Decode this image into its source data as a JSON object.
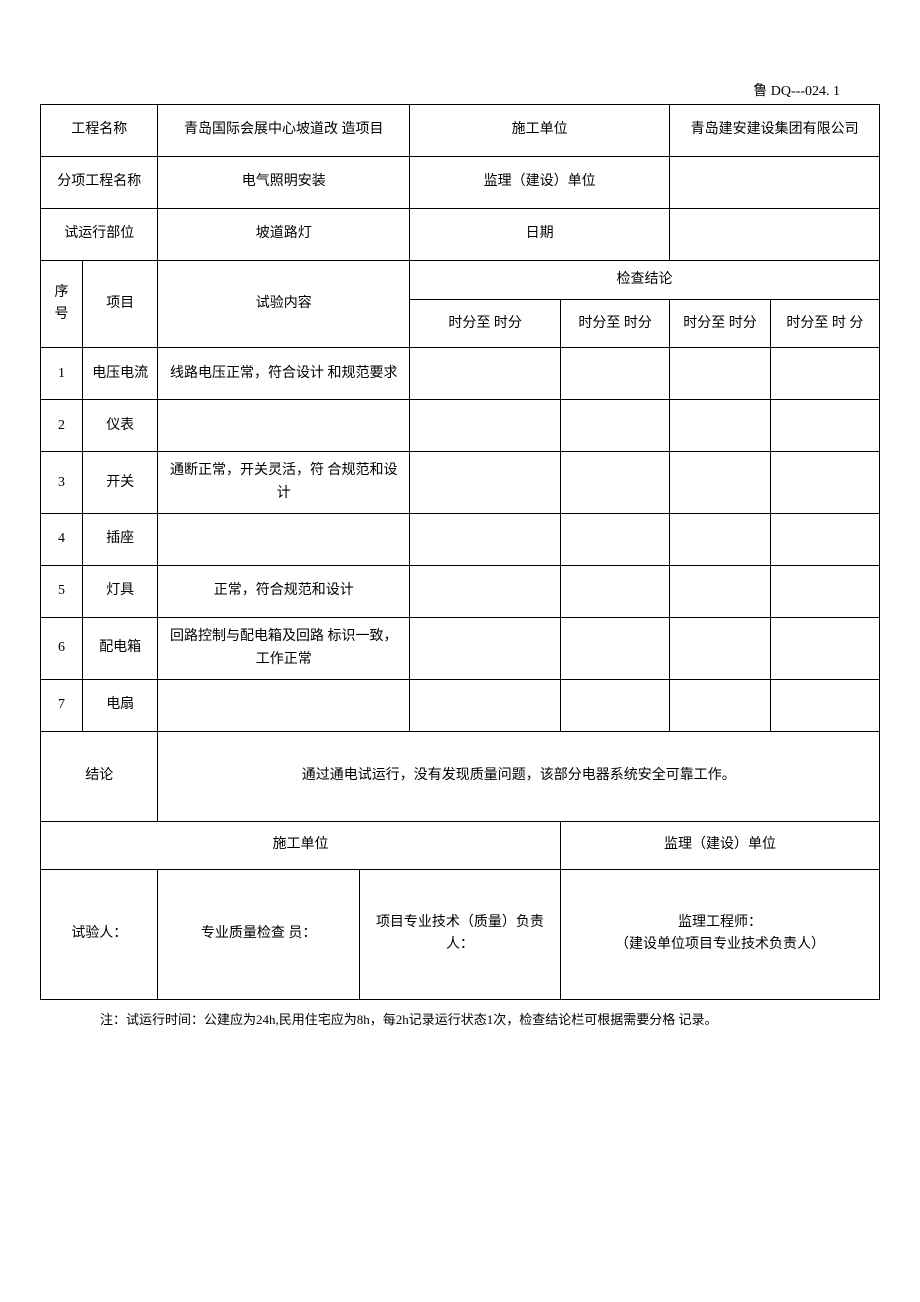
{
  "doc_code": "鲁 DQ---024. 1",
  "header": {
    "project_name_label": "工程名称",
    "project_name_value": "青岛国际会展中心坡道改 造项目",
    "construction_unit_label": "施工单位",
    "construction_unit_value": "青岛建安建设集团有限公司",
    "sub_project_label": "分项工程名称",
    "sub_project_value": "电气照明安装",
    "supervision_unit_label": "监理（建设）单位",
    "supervision_unit_value": "",
    "trial_part_label": "试运行部位",
    "trial_part_value": "坡道路灯",
    "date_label": "日期",
    "date_value": ""
  },
  "columns": {
    "seq_label": "序 号",
    "item_label": "项目",
    "content_label": "试验内容",
    "result_label": "检查结论",
    "time_col1": "时分至 时分",
    "time_col2": "时分至 时分",
    "time_col3": "时分至 时分",
    "time_col4": "时分至 时 分"
  },
  "rows": [
    {
      "seq": "1",
      "item": "电压电流",
      "content": "线路电压正常，符合设计 和规范要求",
      "c1": "",
      "c2": "",
      "c3": "",
      "c4": ""
    },
    {
      "seq": "2",
      "item": "仪表",
      "content": "",
      "c1": "",
      "c2": "",
      "c3": "",
      "c4": ""
    },
    {
      "seq": "3",
      "item": "开关",
      "content": "通断正常，开关灵活，符 合规范和设计",
      "c1": "",
      "c2": "",
      "c3": "",
      "c4": ""
    },
    {
      "seq": "4",
      "item": "插座",
      "content": "",
      "c1": "",
      "c2": "",
      "c3": "",
      "c4": ""
    },
    {
      "seq": "5",
      "item": "灯具",
      "content": "正常，符合规范和设计",
      "c1": "",
      "c2": "",
      "c3": "",
      "c4": ""
    },
    {
      "seq": "6",
      "item": "配电箱",
      "content": "回路控制与配电箱及回路 标识一致，工作正常",
      "c1": "",
      "c2": "",
      "c3": "",
      "c4": ""
    },
    {
      "seq": "7",
      "item": "电扇",
      "content": "",
      "c1": "",
      "c2": "",
      "c3": "",
      "c4": ""
    }
  ],
  "conclusion": {
    "label": "结论",
    "value": "通过通电试运行，没有发现质量问题，该部分电器系统安全可靠工作。"
  },
  "signatures": {
    "construction_unit_header": "施工单位",
    "supervision_unit_header": "监理（建设）单位",
    "tester_label": "试验人：",
    "qc_label": "专业质量检查 员：",
    "tech_lead_label": "项目专业技术（质量）负责人：",
    "supervisor_label_l1": "监理工程师：",
    "supervisor_label_l2": "（建设单位项目专业技术负责人）"
  },
  "footnote": "注：试运行时间：公建应为24h,民用住宅应为8h，每2h记录运行状态1次，检查结论栏可根据需要分格 记录。",
  "style": {
    "border_color": "#000000",
    "background": "#ffffff",
    "font_family": "SimSun",
    "base_font_size": 14
  }
}
